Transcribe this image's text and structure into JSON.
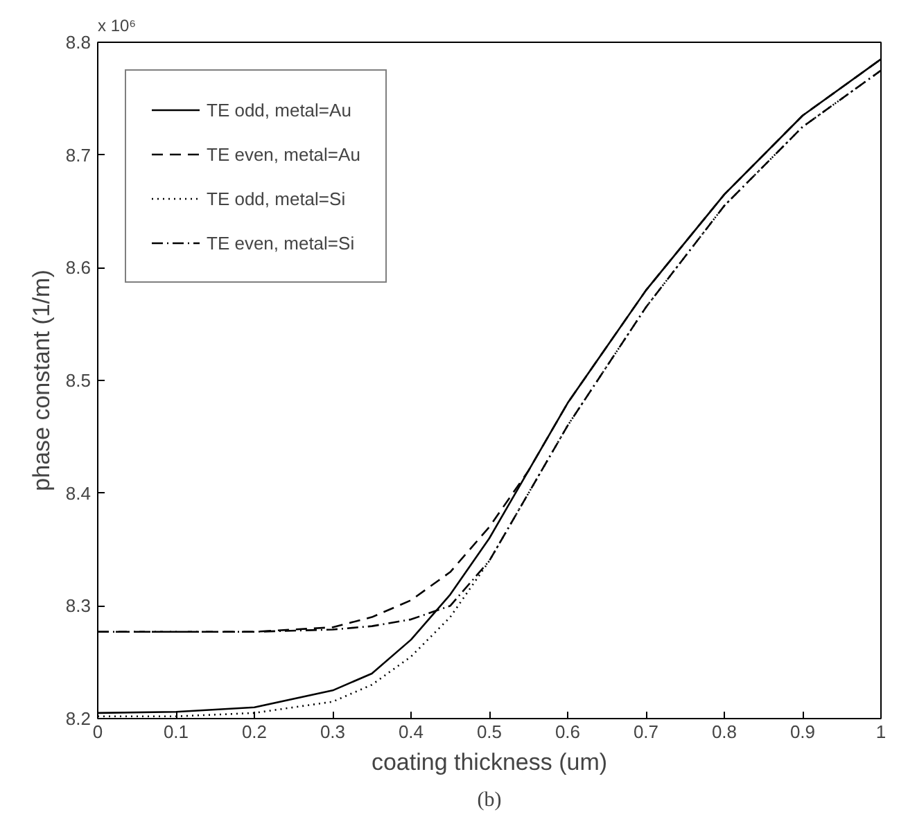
{
  "chart_data": {
    "type": "line",
    "xlabel": "coating thickness (um)",
    "ylabel": "phase constant (1/m)",
    "x": [
      0,
      0.1,
      0.2,
      0.3,
      0.35,
      0.4,
      0.45,
      0.5,
      0.55,
      0.6,
      0.7,
      0.8,
      0.9,
      1.0
    ],
    "series": [
      {
        "name": "TE odd, metal=Au",
        "color": "#000000",
        "line_style": "solid",
        "values": [
          8.205,
          8.206,
          8.21,
          8.225,
          8.24,
          8.27,
          8.31,
          8.36,
          8.42,
          8.48,
          8.58,
          8.665,
          8.735,
          8.785
        ]
      },
      {
        "name": "TE even, metal=Au",
        "color": "#000000",
        "line_style": "dashed",
        "values": [
          8.277,
          8.277,
          8.277,
          8.281,
          8.29,
          8.305,
          8.33,
          8.37,
          8.42,
          8.48,
          8.58,
          8.665,
          8.735,
          8.785
        ]
      },
      {
        "name": "TE odd, metal=Si",
        "color": "#000000",
        "line_style": "dotted",
        "values": [
          8.202,
          8.202,
          8.205,
          8.215,
          8.23,
          8.255,
          8.29,
          8.34,
          8.4,
          8.46,
          8.565,
          8.655,
          8.725,
          8.775
        ]
      },
      {
        "name": "TE even, metal=Si",
        "color": "#000000",
        "line_style": "dashdot",
        "values": [
          8.277,
          8.277,
          8.277,
          8.279,
          8.282,
          8.288,
          8.3,
          8.34,
          8.4,
          8.46,
          8.565,
          8.655,
          8.725,
          8.775
        ]
      }
    ],
    "xlim": [
      0,
      1
    ],
    "ylim": [
      8.2,
      8.8
    ],
    "xticks": [
      0,
      0.1,
      0.2,
      0.3,
      0.4,
      0.5,
      0.6,
      0.7,
      0.8,
      0.9,
      1
    ],
    "yticks": [
      8.2,
      8.3,
      8.4,
      8.5,
      8.6,
      8.7,
      8.8
    ],
    "grid": false,
    "legend": "top left",
    "marker": "none",
    "annotations": [
      "x 10⁶",
      "(b)"
    ]
  }
}
